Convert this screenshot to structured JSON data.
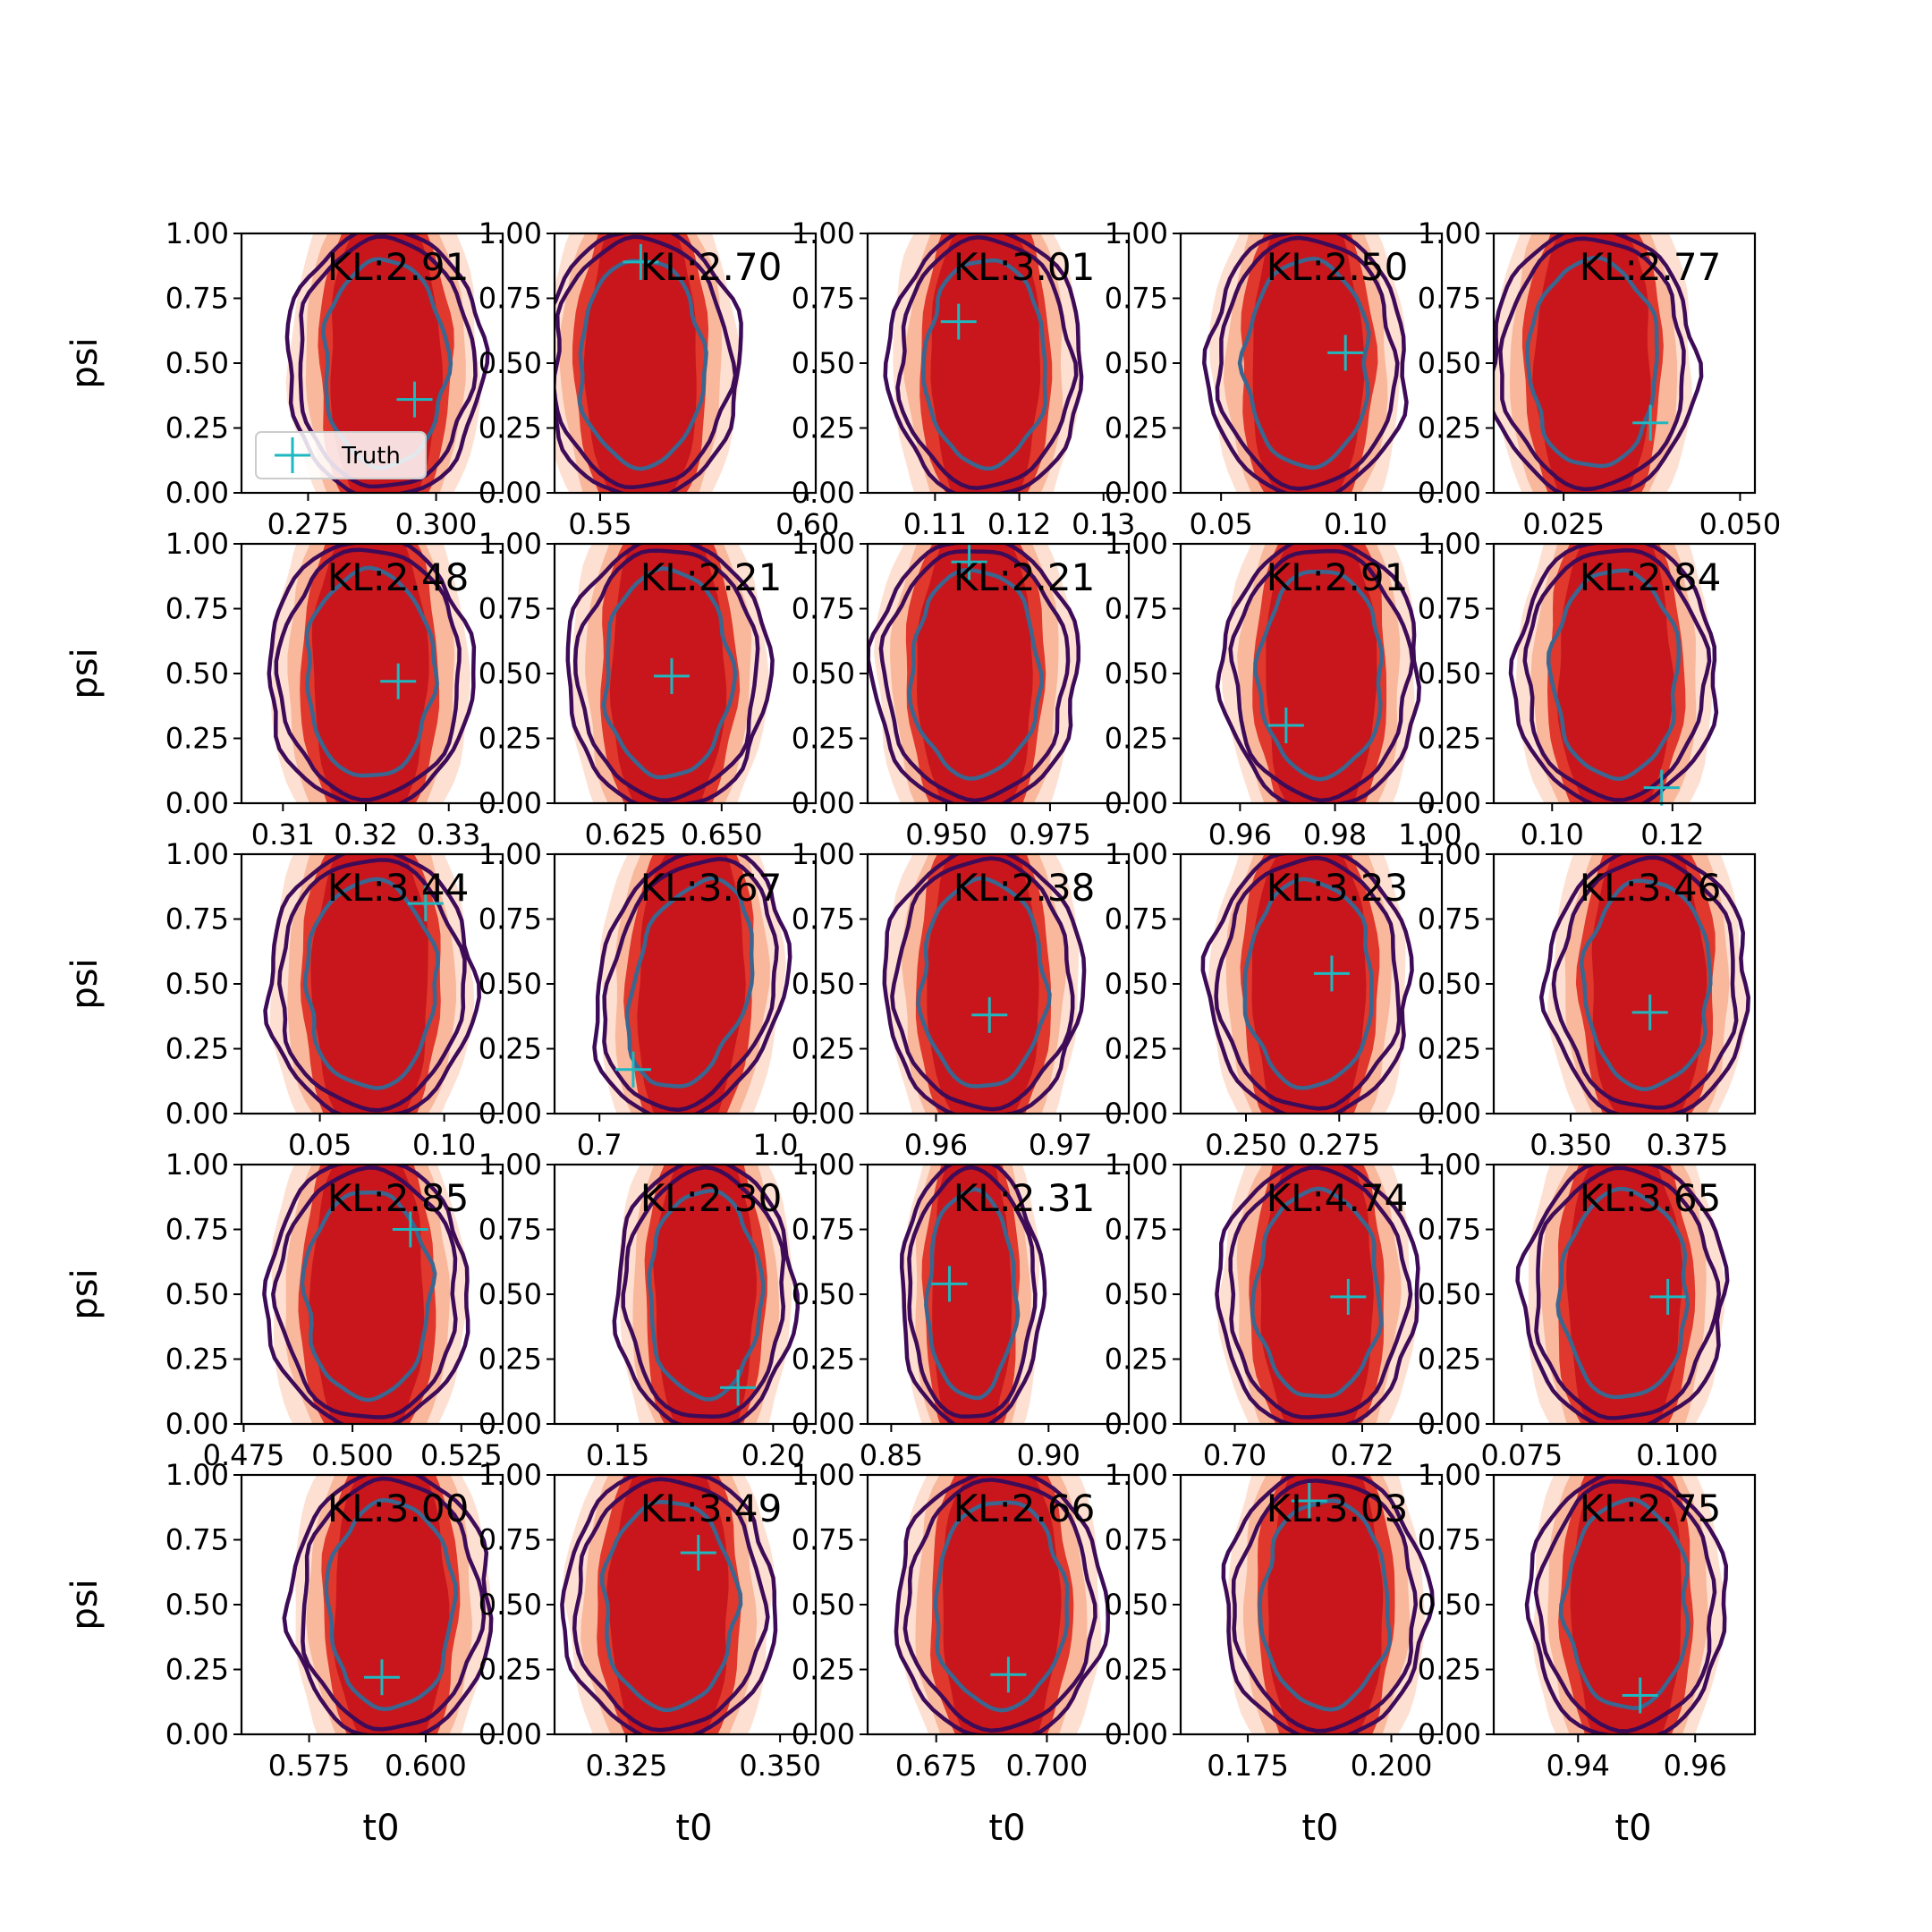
{
  "chart_data": {
    "type": "contour-grid",
    "rows": 5,
    "cols": 5,
    "xlabel": "t0",
    "ylabel": "psi",
    "ylim": [
      0,
      1
    ],
    "yticks": [
      "0.00",
      "0.25",
      "0.50",
      "0.75",
      "1.00"
    ],
    "legend": {
      "label": "Truth",
      "placement": "lower-left of first panel"
    },
    "colors": {
      "fill_light": "#fde0d2",
      "fill_mid": "#f9b89c",
      "fill_core": "#e0382c",
      "fill_dark": "#c8161c",
      "contour_outer": "#3d0b57",
      "contour_inner": "#3a6690",
      "truth": "#1fb8c0"
    },
    "panels": [
      {
        "kl": "KL:2.91",
        "xlim": [
          0.262,
          0.313
        ],
        "xticks": [
          {
            "v": 0.275,
            "l": "0.275"
          },
          {
            "v": 0.3,
            "l": "0.300"
          }
        ],
        "truth": [
          0.2958,
          0.36
        ],
        "center": 0.29,
        "width": 0.012,
        "skew": 0.0
      },
      {
        "kl": "KL:2.70",
        "xlim": [
          0.539,
          0.602
        ],
        "xticks": [
          {
            "v": 0.55,
            "l": "0.55"
          },
          {
            "v": 0.6,
            "l": "0.60"
          }
        ],
        "truth": [
          0.5598,
          0.89
        ],
        "center": 0.56,
        "width": 0.015,
        "skew": 0.0
      },
      {
        "kl": "KL:3.01",
        "xlim": [
          0.102,
          0.133
        ],
        "xticks": [
          {
            "v": 0.11,
            "l": "0.11"
          },
          {
            "v": 0.12,
            "l": "0.12"
          },
          {
            "v": 0.13,
            "l": "0.13"
          }
        ],
        "truth": [
          0.1128,
          0.66
        ],
        "center": 0.116,
        "width": 0.0072,
        "skew": 0.0
      },
      {
        "kl": "KL:2.50",
        "xlim": [
          0.035,
          0.132
        ],
        "xticks": [
          {
            "v": 0.05,
            "l": "0.05"
          },
          {
            "v": 0.1,
            "l": "0.10"
          }
        ],
        "truth": [
          0.0962,
          0.54
        ],
        "center": 0.082,
        "width": 0.023,
        "skew": 0.0
      },
      {
        "kl": "KL:2.77",
        "xlim": [
          0.0151,
          0.0521
        ],
        "xticks": [
          {
            "v": 0.025,
            "l": "0.025"
          },
          {
            "v": 0.05,
            "l": "0.050"
          }
        ],
        "truth": [
          0.0373,
          0.27
        ],
        "center": 0.0292,
        "width": 0.0091,
        "skew": 0.0
      },
      {
        "kl": "KL:2.48",
        "xlim": [
          0.305,
          0.3365
        ],
        "xticks": [
          {
            "v": 0.31,
            "l": "0.31"
          },
          {
            "v": 0.32,
            "l": "0.32"
          },
          {
            "v": 0.33,
            "l": "0.33"
          }
        ],
        "truth": [
          0.3239,
          0.47
        ],
        "center": 0.3205,
        "width": 0.0077,
        "skew": 0.0
      },
      {
        "kl": "KL:2.21",
        "xlim": [
          0.6065,
          0.6745
        ],
        "xticks": [
          {
            "v": 0.625,
            "l": "0.625"
          },
          {
            "v": 0.65,
            "l": "0.650"
          }
        ],
        "truth": [
          0.637,
          0.49
        ],
        "center": 0.636,
        "width": 0.0165,
        "skew": 0.0
      },
      {
        "kl": "KL:2.21",
        "xlim": [
          0.931,
          0.994
        ],
        "xticks": [
          {
            "v": 0.95,
            "l": "0.950"
          },
          {
            "v": 0.975,
            "l": "0.975"
          }
        ],
        "truth": [
          0.9555,
          0.93
        ],
        "center": 0.957,
        "width": 0.0155,
        "skew": 0.0
      },
      {
        "kl": "KL:2.91",
        "xlim": [
          0.9475,
          1.0025
        ],
        "xticks": [
          {
            "v": 0.96,
            "l": "0.96"
          },
          {
            "v": 0.98,
            "l": "0.98"
          },
          {
            "v": 1.0,
            "l": "1.00"
          }
        ],
        "truth": [
          0.9697,
          0.3
        ],
        "center": 0.977,
        "width": 0.013,
        "skew": 0.0
      },
      {
        "kl": "KL:2.84",
        "xlim": [
          0.0903,
          0.1337
        ],
        "xticks": [
          {
            "v": 0.1,
            "l": "0.10"
          },
          {
            "v": 0.12,
            "l": "0.12"
          }
        ],
        "truth": [
          0.1182,
          0.06
        ],
        "center": 0.1105,
        "width": 0.0105,
        "skew": 0.0
      },
      {
        "kl": "KL:3.44",
        "xlim": [
          0.0185,
          0.1235
        ],
        "xticks": [
          {
            "v": 0.05,
            "l": "0.05"
          },
          {
            "v": 0.1,
            "l": "0.10"
          }
        ],
        "truth": [
          0.0925,
          0.81
        ],
        "center": 0.0705,
        "width": 0.026,
        "skew": 0.0
      },
      {
        "kl": "KL:3.67",
        "xlim": [
          0.6235,
          1.0685
        ],
        "xticks": [
          {
            "v": 0.7,
            "l": "0.7"
          },
          {
            "v": 1.0,
            "l": "1.0"
          }
        ],
        "truth": [
          0.7575,
          0.17
        ],
        "center": 0.855,
        "width": 0.1,
        "skew": -0.35
      },
      {
        "kl": "KL:2.38",
        "xlim": [
          0.9545,
          0.9755
        ],
        "xticks": [
          {
            "v": 0.96,
            "l": "0.96"
          },
          {
            "v": 0.97,
            "l": "0.97"
          }
        ],
        "truth": [
          0.9643,
          0.38
        ],
        "center": 0.9638,
        "width": 0.005,
        "skew": 0.0
      },
      {
        "kl": "KL:3.23",
        "xlim": [
          0.2325,
          0.3025
        ],
        "xticks": [
          {
            "v": 0.25,
            "l": "0.250"
          },
          {
            "v": 0.275,
            "l": "0.275"
          }
        ],
        "truth": [
          0.273,
          0.54
        ],
        "center": 0.267,
        "width": 0.017,
        "skew": 0.0
      },
      {
        "kl": "KL:3.46",
        "xlim": [
          0.3335,
          0.3895
        ],
        "xticks": [
          {
            "v": 0.35,
            "l": "0.350"
          },
          {
            "v": 0.375,
            "l": "0.375"
          }
        ],
        "truth": [
          0.367,
          0.39
        ],
        "center": 0.3665,
        "width": 0.0135,
        "skew": 0.0
      },
      {
        "kl": "KL:2.85",
        "xlim": [
          0.4745,
          0.5345
        ],
        "xticks": [
          {
            "v": 0.475,
            "l": "0.475"
          },
          {
            "v": 0.5,
            "l": "0.500"
          },
          {
            "v": 0.525,
            "l": "0.525"
          }
        ],
        "truth": [
          0.5133,
          0.75
        ],
        "center": 0.5035,
        "width": 0.0145,
        "skew": 0.0
      },
      {
        "kl": "KL:2.30",
        "xlim": [
          0.1297,
          0.2137
        ],
        "xticks": [
          {
            "v": 0.15,
            "l": "0.15"
          },
          {
            "v": 0.2,
            "l": "0.20"
          }
        ],
        "truth": [
          0.1887,
          0.14
        ],
        "center": 0.178,
        "width": 0.018,
        "skew": 0.0
      },
      {
        "kl": "KL:2.31",
        "xlim": [
          0.8425,
          0.9255
        ],
        "xticks": [
          {
            "v": 0.85,
            "l": "0.85"
          },
          {
            "v": 0.9,
            "l": "0.90"
          }
        ],
        "truth": [
          0.8685,
          0.54
        ],
        "center": 0.8755,
        "width": 0.014,
        "skew": 0.0
      },
      {
        "kl": "KL:4.74",
        "xlim": [
          0.6915,
          0.7325
        ],
        "xticks": [
          {
            "v": 0.7,
            "l": "0.70"
          },
          {
            "v": 0.72,
            "l": "0.72"
          }
        ],
        "truth": [
          0.7178,
          0.49
        ],
        "center": 0.713,
        "width": 0.0098,
        "skew": 0.0
      },
      {
        "kl": "KL:3.65",
        "xlim": [
          0.0705,
          0.1125
        ],
        "xticks": [
          {
            "v": 0.075,
            "l": "0.075"
          },
          {
            "v": 0.1,
            "l": "0.100"
          }
        ],
        "truth": [
          0.0985,
          0.49
        ],
        "center": 0.0915,
        "width": 0.0102,
        "skew": 0.0
      },
      {
        "kl": "KL:3.00",
        "xlim": [
          0.5605,
          0.6165
        ],
        "xticks": [
          {
            "v": 0.575,
            "l": "0.575"
          },
          {
            "v": 0.6,
            "l": "0.600"
          }
        ],
        "truth": [
          0.5906,
          0.22
        ],
        "center": 0.5925,
        "width": 0.0135,
        "skew": 0.0
      },
      {
        "kl": "KL:3.49",
        "xlim": [
          0.3133,
          0.3558
        ],
        "xticks": [
          {
            "v": 0.325,
            "l": "0.325"
          },
          {
            "v": 0.35,
            "l": "0.350"
          }
        ],
        "truth": [
          0.3367,
          0.7
        ],
        "center": 0.332,
        "width": 0.0108,
        "skew": 0.0
      },
      {
        "kl": "KL:2.66",
        "xlim": [
          0.6595,
          0.7185
        ],
        "xticks": [
          {
            "v": 0.675,
            "l": "0.675"
          },
          {
            "v": 0.7,
            "l": "0.700"
          }
        ],
        "truth": [
          0.6913,
          0.23
        ],
        "center": 0.6895,
        "width": 0.0148,
        "skew": 0.0
      },
      {
        "kl": "KL:3.03",
        "xlim": [
          0.1633,
          0.2088
        ],
        "xticks": [
          {
            "v": 0.175,
            "l": "0.175"
          },
          {
            "v": 0.2,
            "l": "0.200"
          }
        ],
        "truth": [
          0.1857,
          0.9
        ],
        "center": 0.1885,
        "width": 0.0111,
        "skew": 0.0
      },
      {
        "kl": "KL:2.75",
        "xlim": [
          0.9256,
          0.9702
        ],
        "xticks": [
          {
            "v": 0.94,
            "l": "0.94"
          },
          {
            "v": 0.96,
            "l": "0.96"
          }
        ],
        "truth": [
          0.9506,
          0.15
        ],
        "center": 0.9484,
        "width": 0.0105,
        "skew": 0.0
      }
    ]
  }
}
